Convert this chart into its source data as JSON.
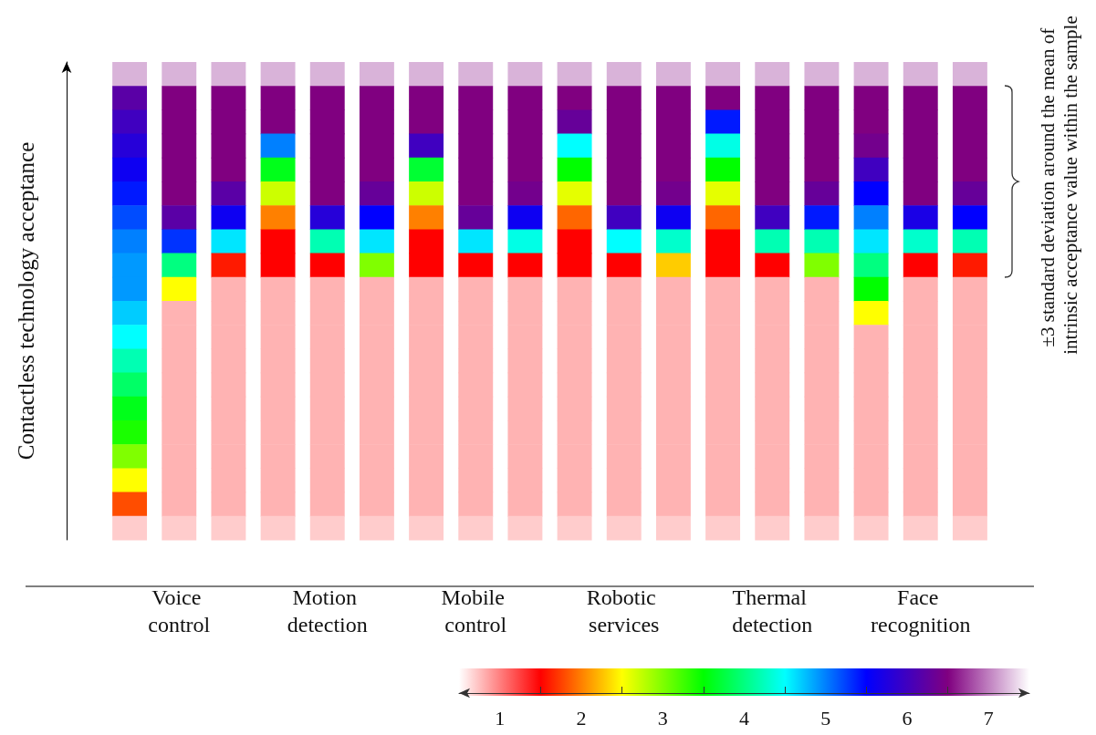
{
  "chart_data": {
    "type": "heatmap",
    "ylabel": "Contactless technology acceptance",
    "y2label": "±3 standard deviation around the mean of intrinsic acceptance value within the sample",
    "categories": [
      null,
      "Voice control",
      null,
      null,
      "Motion detection",
      null,
      null,
      "Mobile control",
      null,
      null,
      "Robotic services",
      null,
      null,
      "Thermal detection",
      null,
      null,
      "Face recognition",
      null
    ],
    "y_categories": [
      null,
      null,
      null,
      null,
      null,
      null,
      null,
      null,
      null,
      null,
      null,
      null,
      null,
      null,
      null,
      null,
      null,
      null,
      null,
      null
    ],
    "cells": [
      [
        7.2,
        7.2,
        7.2,
        7.2,
        7.2,
        7.2,
        7.2,
        7.2,
        7.2,
        7.2,
        7.2,
        7.2,
        7.2,
        7.2,
        7.2,
        7.2,
        7.2,
        7.2
      ],
      [
        6.2,
        6.5,
        6.5,
        6.5,
        6.5,
        6.5,
        6.5,
        6.5,
        6.5,
        6.5,
        6.5,
        6.5,
        6.5,
        6.5,
        6.5,
        6.5,
        6.5,
        6.5
      ],
      [
        6.0,
        6.5,
        6.5,
        6.5,
        6.5,
        6.5,
        6.5,
        6.5,
        6.5,
        6.3,
        6.5,
        6.5,
        5.4,
        6.5,
        6.5,
        6.5,
        6.5,
        6.5
      ],
      [
        5.8,
        6.5,
        6.5,
        5.0,
        6.5,
        6.5,
        6.0,
        6.5,
        6.5,
        4.5,
        6.5,
        6.5,
        4.4,
        6.5,
        6.5,
        6.4,
        6.5,
        6.5
      ],
      [
        5.6,
        6.5,
        6.5,
        3.6,
        6.5,
        6.5,
        3.7,
        6.5,
        6.5,
        3.5,
        6.5,
        6.5,
        3.5,
        6.5,
        6.5,
        6.0,
        6.5,
        6.5
      ],
      [
        5.4,
        6.5,
        6.2,
        2.7,
        6.5,
        6.3,
        2.7,
        6.5,
        6.4,
        2.6,
        6.5,
        6.4,
        2.6,
        6.5,
        6.3,
        5.5,
        6.5,
        6.3
      ],
      [
        5.2,
        6.2,
        5.6,
        2.0,
        5.8,
        5.5,
        2.0,
        6.3,
        5.6,
        1.9,
        6.0,
        5.6,
        1.9,
        6.0,
        5.4,
        5.0,
        5.7,
        5.5
      ],
      [
        5.0,
        5.3,
        4.6,
        1.5,
        4.2,
        4.6,
        1.5,
        4.6,
        4.4,
        1.5,
        4.5,
        4.3,
        1.5,
        4.2,
        4.2,
        4.6,
        4.3,
        4.2
      ],
      [
        4.9,
        4.0,
        1.6,
        1.5,
        1.5,
        3.0,
        1.5,
        1.5,
        1.5,
        1.5,
        1.5,
        2.3,
        1.5,
        1.5,
        3.0,
        4.0,
        1.5,
        1.6
      ],
      [
        4.9,
        2.5,
        0.8,
        0.8,
        0.8,
        0.8,
        0.8,
        0.8,
        0.8,
        0.8,
        0.8,
        0.8,
        0.8,
        0.8,
        0.8,
        3.5,
        0.8,
        0.8
      ],
      [
        4.7,
        0.8,
        0.8,
        0.8,
        0.8,
        0.8,
        0.8,
        0.8,
        0.8,
        0.8,
        0.8,
        0.8,
        0.8,
        0.8,
        0.8,
        2.5,
        0.8,
        0.8
      ],
      [
        4.5,
        0.8,
        0.8,
        0.8,
        0.8,
        0.8,
        0.8,
        0.8,
        0.8,
        0.8,
        0.8,
        0.8,
        0.8,
        0.8,
        0.8,
        0.8,
        0.8,
        0.8
      ],
      [
        4.2,
        0.8,
        0.8,
        0.8,
        0.8,
        0.8,
        0.8,
        0.8,
        0.8,
        0.8,
        0.8,
        0.8,
        0.8,
        0.8,
        0.8,
        0.8,
        0.8,
        0.8
      ],
      [
        3.9,
        0.8,
        0.8,
        0.8,
        0.8,
        0.8,
        0.8,
        0.8,
        0.8,
        0.8,
        0.8,
        0.8,
        0.8,
        0.8,
        0.8,
        0.8,
        0.8,
        0.8
      ],
      [
        3.6,
        0.8,
        0.8,
        0.8,
        0.8,
        0.8,
        0.8,
        0.8,
        0.8,
        0.8,
        0.8,
        0.8,
        0.8,
        0.8,
        0.8,
        0.8,
        0.8,
        0.8
      ],
      [
        3.4,
        0.8,
        0.8,
        0.8,
        0.8,
        0.8,
        0.8,
        0.8,
        0.8,
        0.8,
        0.8,
        0.8,
        0.8,
        0.8,
        0.8,
        0.8,
        0.8,
        0.8
      ],
      [
        3.0,
        0.8,
        0.8,
        0.8,
        0.8,
        0.8,
        0.8,
        0.8,
        0.8,
        0.8,
        0.8,
        0.8,
        0.8,
        0.8,
        0.8,
        0.8,
        0.8,
        0.8
      ],
      [
        2.5,
        0.8,
        0.8,
        0.8,
        0.8,
        0.8,
        0.8,
        0.8,
        0.8,
        0.8,
        0.8,
        0.8,
        0.8,
        0.8,
        0.8,
        0.8,
        0.8,
        0.8
      ],
      [
        1.8,
        0.8,
        0.8,
        0.8,
        0.8,
        0.8,
        0.8,
        0.8,
        0.8,
        0.8,
        0.8,
        0.8,
        0.8,
        0.8,
        0.8,
        0.8,
        0.8,
        0.8
      ],
      [
        0.7,
        0.7,
        0.7,
        0.7,
        0.7,
        0.7,
        0.7,
        0.7,
        0.7,
        0.7,
        0.7,
        0.7,
        0.7,
        0.7,
        0.7,
        0.7,
        0.7,
        0.7
      ]
    ],
    "clim": [
      0.5,
      7.5
    ],
    "cticks": [
      1,
      {
        "value": 1.5,
        "label": null
      },
      2,
      {
        "value": 2.5,
        "label": null
      },
      3,
      {
        "value": 3.5,
        "label": null
      },
      4,
      {
        "value": 4.5,
        "label": null
      },
      5,
      {
        "value": 5.5,
        "label": null
      },
      6,
      {
        "value": 6.5,
        "label": null
      },
      7
    ],
    "tick_labels": "x"
  }
}
